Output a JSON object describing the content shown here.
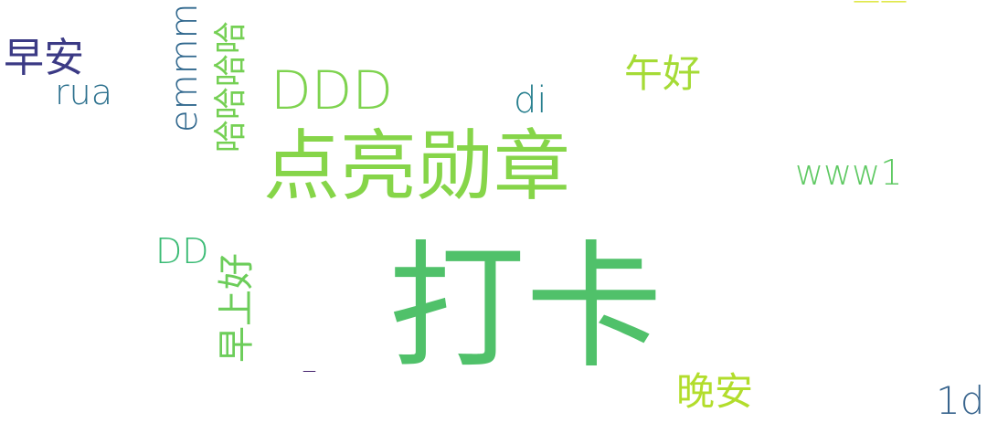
{
  "words": [
    {
      "key": "dangka",
      "text": "打卡",
      "color": "#50c16a",
      "orientation": "horizontal"
    },
    {
      "key": "dianliang",
      "text": "点亮勋章",
      "color": "#86d549",
      "orientation": "horizontal"
    },
    {
      "key": "ddd",
      "text": "DDD",
      "color": "#7ed34f",
      "orientation": "horizontal"
    },
    {
      "key": "wanan",
      "text": "晚安",
      "color": "#b2dd2c",
      "orientation": "horizontal"
    },
    {
      "key": "wuhao",
      "text": "午好",
      "color": "#a5db36",
      "orientation": "horizontal"
    },
    {
      "key": "zaoan",
      "text": "早安",
      "color": "#3b3a85",
      "orientation": "horizontal"
    },
    {
      "key": "rua",
      "text": "rua",
      "color": "#2d718e",
      "orientation": "horizontal"
    },
    {
      "key": "di",
      "text": "di",
      "color": "#277f8e",
      "orientation": "horizontal"
    },
    {
      "key": "www1",
      "text": "www1",
      "color": "#5ec962",
      "orientation": "horizontal"
    },
    {
      "key": "dd",
      "text": "DD",
      "color": "#3bbb75",
      "orientation": "horizontal"
    },
    {
      "key": "1d",
      "text": "1d",
      "color": "#38648d",
      "orientation": "horizontal"
    },
    {
      "key": "dash1",
      "text": "——",
      "color": "#d8e219",
      "orientation": "horizontal"
    },
    {
      "key": "dash2",
      "text": "_",
      "color": "#46246e",
      "orientation": "horizontal"
    },
    {
      "key": "emmm",
      "text": "emmm",
      "color": "#31688e",
      "orientation": "vertical"
    },
    {
      "key": "hahaha",
      "text": "哈哈哈哈",
      "color": "#75d054",
      "orientation": "vertical"
    },
    {
      "key": "zaoshang",
      "text": "早上好",
      "color": "#6ccd5a",
      "orientation": "vertical"
    }
  ]
}
